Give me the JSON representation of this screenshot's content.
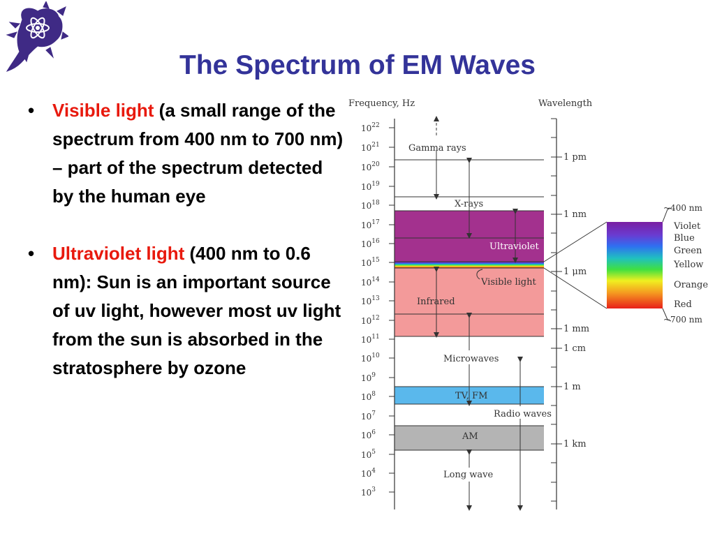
{
  "slide": {
    "title": "The Spectrum of EM Waves",
    "bullets": [
      {
        "term": "Visible light",
        "text": " (a small range of the spectrum from 400 nm to 700 nm) – part of the spectrum detected by the human eye"
      },
      {
        "term": "Ultraviolet light",
        "text": " (400 nm to 0.6 nm): Sun is an important source of uv light, however most uv light from the sun is absorbed in the stratosphere by ozone"
      }
    ]
  },
  "diagram": {
    "frequency_header": "Frequency, Hz",
    "wavelength_header": "Wavelength",
    "frequency_ticks": [
      {
        "base": "10",
        "exp": "22"
      },
      {
        "base": "10",
        "exp": "21"
      },
      {
        "base": "10",
        "exp": "20"
      },
      {
        "base": "10",
        "exp": "19"
      },
      {
        "base": "10",
        "exp": "18"
      },
      {
        "base": "10",
        "exp": "17"
      },
      {
        "base": "10",
        "exp": "16"
      },
      {
        "base": "10",
        "exp": "15"
      },
      {
        "base": "10",
        "exp": "14"
      },
      {
        "base": "10",
        "exp": "13"
      },
      {
        "base": "10",
        "exp": "12"
      },
      {
        "base": "10",
        "exp": "11"
      },
      {
        "base": "10",
        "exp": "10"
      },
      {
        "base": "10",
        "exp": "9"
      },
      {
        "base": "10",
        "exp": "8"
      },
      {
        "base": "10",
        "exp": "7"
      },
      {
        "base": "10",
        "exp": "6"
      },
      {
        "base": "10",
        "exp": "5"
      },
      {
        "base": "10",
        "exp": "4"
      },
      {
        "base": "10",
        "exp": "3"
      }
    ],
    "wavelength_labels": [
      "1 pm",
      "1 nm",
      "1 μm",
      "1 mm",
      "1 cm",
      "1 m",
      "1 km"
    ],
    "band_labels": {
      "gamma": "Gamma rays",
      "xrays": "X-rays",
      "ultraviolet": "Ultraviolet",
      "visible": "Visible light",
      "infrared": "Infrared",
      "microwaves": "Microwaves",
      "tvfm": "TV, FM",
      "radio": "Radio waves",
      "am": "AM",
      "longwave": "Long wave"
    },
    "visible_edges": [
      "~400 nm",
      "~700 nm"
    ],
    "visible_colors": [
      "Violet",
      "Blue",
      "Green",
      "Yellow",
      "Orange",
      "Red"
    ],
    "band_colors": {
      "ultraviolet": "#a3318e",
      "infrared": "#f39a9a",
      "tvfm": "#5ab8ec",
      "am": "#b4b4b4"
    }
  }
}
